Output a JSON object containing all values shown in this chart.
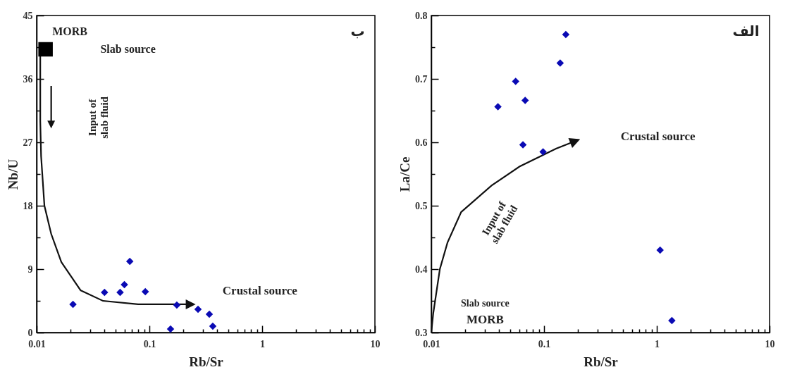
{
  "chart_data": [
    {
      "type": "scatter",
      "xlabel": "Rb/Sr",
      "ylabel": "Nb/U",
      "log": "x",
      "xlim": [
        0.01,
        10
      ],
      "xticks": [
        0.01,
        {
          "value": 0.02,
          "label": null
        },
        {
          "value": 0.03,
          "label": null
        },
        {
          "value": 0.04,
          "label": null
        },
        {
          "value": 0.05,
          "label": null
        },
        {
          "value": 0.06,
          "label": null
        },
        {
          "value": 0.07,
          "label": null
        },
        {
          "value": 0.08,
          "label": null
        },
        {
          "value": 0.09,
          "label": null
        },
        0.1,
        {
          "value": 0.2,
          "label": null
        },
        {
          "value": 0.3,
          "label": null
        },
        {
          "value": 0.4,
          "label": null
        },
        {
          "value": 0.5,
          "label": null
        },
        {
          "value": 0.6,
          "label": null
        },
        {
          "value": 0.7,
          "label": null
        },
        {
          "value": 0.8,
          "label": null
        },
        {
          "value": 0.9,
          "label": null
        },
        1,
        {
          "value": 2,
          "label": null
        },
        {
          "value": 3,
          "label": null
        },
        {
          "value": 4,
          "label": null
        },
        {
          "value": 5,
          "label": null
        },
        {
          "value": 6,
          "label": null
        },
        {
          "value": 7,
          "label": null
        },
        {
          "value": 8,
          "label": null
        },
        {
          "value": 9,
          "label": null
        },
        10
      ],
      "ylim": [
        0,
        45
      ],
      "yticks": [
        0,
        {
          "value": 4.5,
          "label": null
        },
        9,
        {
          "value": 13.5,
          "label": null
        },
        18,
        {
          "value": 22.5,
          "label": null
        },
        27,
        {
          "value": 31.5,
          "label": null
        },
        36,
        {
          "value": 40.5,
          "label": null
        },
        45
      ],
      "grid": false,
      "series": [
        {
          "color": "#0a0ab4",
          "marker": "diamond",
          "x": [
            0.021,
            0.04,
            0.055,
            0.06,
            0.067,
            0.092,
            0.154,
            0.175,
            0.27,
            0.34,
            0.365
          ],
          "values": [
            4.0,
            5.7,
            5.7,
            6.8,
            10.1,
            5.8,
            0.5,
            3.9,
            3.3,
            2.6,
            0.9
          ]
        },
        {
          "color": "#000000",
          "marker": "square",
          "x": [
            0.012
          ],
          "values": [
            40.2
          ]
        }
      ],
      "annotations": [
        "MORB",
        "Slab source",
        "Input of\nslab fluid",
        "Crustal source",
        "ب"
      ]
    },
    {
      "type": "scatter",
      "xlabel": "Rb/Sr",
      "ylabel": "La/Ce",
      "log": "x",
      "xlim": [
        0.01,
        10
      ],
      "xticks": [
        0.01,
        {
          "value": 0.02,
          "label": null
        },
        {
          "value": 0.03,
          "label": null
        },
        {
          "value": 0.04,
          "label": null
        },
        {
          "value": 0.05,
          "label": null
        },
        {
          "value": 0.06,
          "label": null
        },
        {
          "value": 0.07,
          "label": null
        },
        {
          "value": 0.08,
          "label": null
        },
        {
          "value": 0.09,
          "label": null
        },
        0.1,
        {
          "value": 0.2,
          "label": null
        },
        {
          "value": 0.3,
          "label": null
        },
        {
          "value": 0.4,
          "label": null
        },
        {
          "value": 0.5,
          "label": null
        },
        {
          "value": 0.6,
          "label": null
        },
        {
          "value": 0.7,
          "label": null
        },
        {
          "value": 0.8,
          "label": null
        },
        {
          "value": 0.9,
          "label": null
        },
        1,
        {
          "value": 2,
          "label": null
        },
        {
          "value": 3,
          "label": null
        },
        {
          "value": 4,
          "label": null
        },
        {
          "value": 5,
          "label": null
        },
        {
          "value": 6,
          "label": null
        },
        {
          "value": 7,
          "label": null
        },
        {
          "value": 8,
          "label": null
        },
        {
          "value": 9,
          "label": null
        },
        10
      ],
      "ylim": [
        0.3,
        0.8
      ],
      "yticks": [
        0.3,
        {
          "value": 0.35,
          "label": null
        },
        0.4,
        {
          "value": 0.45,
          "label": null
        },
        0.5,
        {
          "value": 0.55,
          "label": null
        },
        0.6,
        {
          "value": 0.65,
          "label": null
        },
        0.7,
        {
          "value": 0.75,
          "label": null
        },
        0.8
      ],
      "grid": false,
      "series": [
        {
          "color": "#0a0ab4",
          "marker": "diamond",
          "x": [
            0.039,
            0.056,
            0.068,
            0.065,
            0.098,
            0.139,
            0.156,
            1.07,
            1.36
          ],
          "values": [
            0.656,
            0.696,
            0.666,
            0.596,
            0.585,
            0.725,
            0.77,
            0.43,
            0.319
          ]
        }
      ],
      "annotations": [
        "Slab source",
        "MORB",
        "Input of\nslab fluid",
        "Crustal source",
        "الف"
      ]
    }
  ]
}
